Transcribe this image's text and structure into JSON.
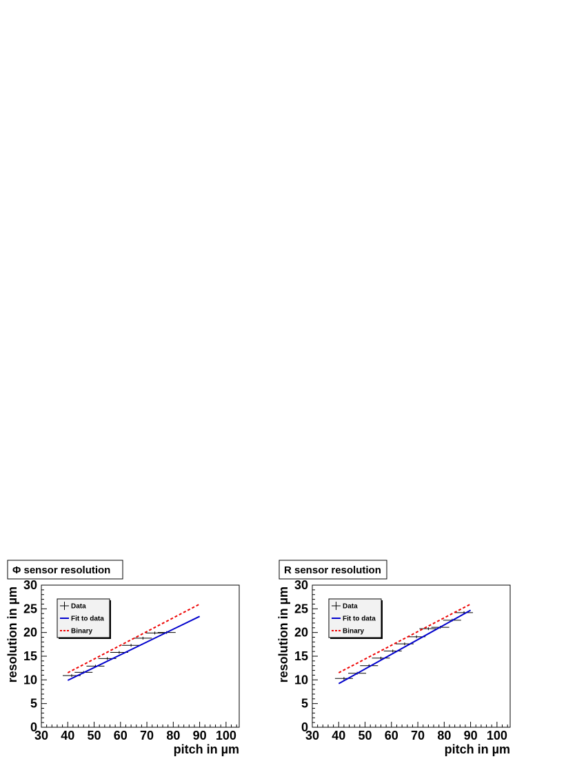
{
  "chart_data": [
    {
      "type": "line",
      "title": "Φ sensor resolution",
      "xlabel": "pitch in µm",
      "ylabel": "resolution in µm",
      "xlim": [
        30,
        105
      ],
      "ylim": [
        0,
        30
      ],
      "xticks": [
        "30",
        "40",
        "50",
        "60",
        "70",
        "80",
        "90",
        "100"
      ],
      "yticks": [
        "0",
        "5",
        "10",
        "15",
        "20",
        "25",
        "30"
      ],
      "grid": false,
      "legend": {
        "placement": "top-left",
        "entries": [
          {
            "label": "Data",
            "style": "marker",
            "color": "#000000"
          },
          {
            "label": "Fit to data",
            "style": "solid",
            "color": "#0000cc"
          },
          {
            "label": "Binary",
            "style": "dashed",
            "color": "#ee0000"
          }
        ]
      },
      "series": [
        {
          "name": "Data",
          "style": "marker",
          "color": "#000000",
          "x": [
            41.5,
            46,
            50.5,
            55,
            59.5,
            64,
            68.5,
            73,
            77.5
          ],
          "y": [
            10.9,
            11.6,
            12.9,
            14.5,
            15.8,
            17.3,
            18.8,
            19.9,
            20.0
          ]
        },
        {
          "name": "Fit to data",
          "style": "solid",
          "color": "#0000cc",
          "x": [
            40,
            90
          ],
          "y": [
            9.9,
            23.4
          ]
        },
        {
          "name": "Binary",
          "style": "dashed",
          "color": "#ee0000",
          "x": [
            40,
            90
          ],
          "y": [
            11.5,
            26.0
          ]
        }
      ]
    },
    {
      "type": "line",
      "title": "R sensor resolution",
      "xlabel": "pitch in µm",
      "ylabel": "resolution in µm",
      "xlim": [
        30,
        105
      ],
      "ylim": [
        0,
        30
      ],
      "xticks": [
        "30",
        "40",
        "50",
        "60",
        "70",
        "80",
        "90",
        "100"
      ],
      "yticks": [
        "0",
        "5",
        "10",
        "15",
        "20",
        "25",
        "30"
      ],
      "grid": false,
      "legend": {
        "placement": "top-left",
        "entries": [
          {
            "label": "Data",
            "style": "marker",
            "color": "#000000"
          },
          {
            "label": "Fit to data",
            "style": "solid",
            "color": "#0000cc"
          },
          {
            "label": "Binary",
            "style": "dashed",
            "color": "#ee0000"
          }
        ]
      },
      "series": [
        {
          "name": "Data",
          "style": "marker",
          "color": "#000000",
          "x": [
            42,
            47,
            51.5,
            56,
            60.5,
            65,
            69.5,
            74,
            78.5,
            83,
            87.5
          ],
          "y": [
            10.3,
            11.4,
            13.0,
            14.6,
            16.1,
            17.6,
            19.1,
            20.8,
            21.1,
            22.6,
            24.2
          ]
        },
        {
          "name": "Fit to data",
          "style": "solid",
          "color": "#0000cc",
          "x": [
            40,
            90
          ],
          "y": [
            9.2,
            24.7
          ]
        },
        {
          "name": "Binary",
          "style": "dashed",
          "color": "#ee0000",
          "x": [
            40,
            90
          ],
          "y": [
            11.5,
            26.0
          ]
        }
      ]
    }
  ]
}
